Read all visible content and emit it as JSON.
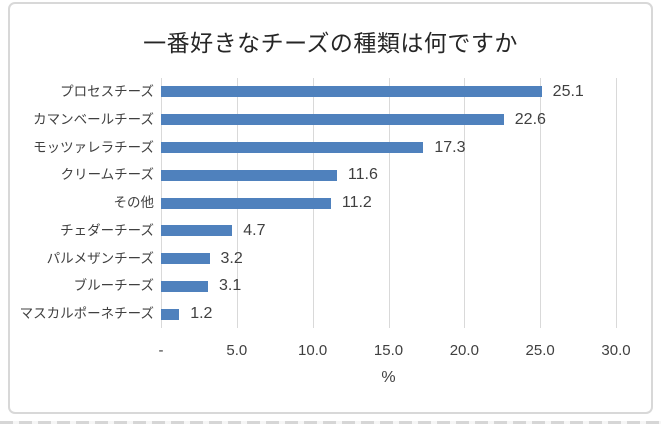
{
  "chart_data": {
    "type": "bar",
    "orientation": "horizontal",
    "title": "一番好きなチーズの種類は何ですか",
    "categories": [
      "プロセスチーズ",
      "カマンベールチーズ",
      "モッツァレラチーズ",
      "クリームチーズ",
      "その他",
      "チェダーチーズ",
      "パルメザンチーズ",
      "ブルーチーズ",
      "マスカルポーネチーズ"
    ],
    "values": [
      25.1,
      22.6,
      17.3,
      11.6,
      11.2,
      4.7,
      3.2,
      3.1,
      1.2
    ],
    "value_labels": [
      "25.1",
      "22.6",
      "17.3",
      "11.6",
      "11.2",
      "4.7",
      "3.2",
      "3.1",
      "1.2"
    ],
    "xlabel": "%",
    "xlim": [
      0,
      30
    ],
    "x_ticks": [
      0,
      5,
      10,
      15,
      20,
      25,
      30
    ],
    "x_tick_labels": [
      "-",
      "5.0",
      "10.0",
      "15.0",
      "20.0",
      "25.0",
      "30.0"
    ],
    "grid": true,
    "legend": false,
    "bar_color": "#4F81BD",
    "gridline_color": "#D9D9D9",
    "text_color": "#404040",
    "title_color": "#262626",
    "frame_border_color": "#D8D8D8",
    "background_color": "#FFFFFF"
  }
}
